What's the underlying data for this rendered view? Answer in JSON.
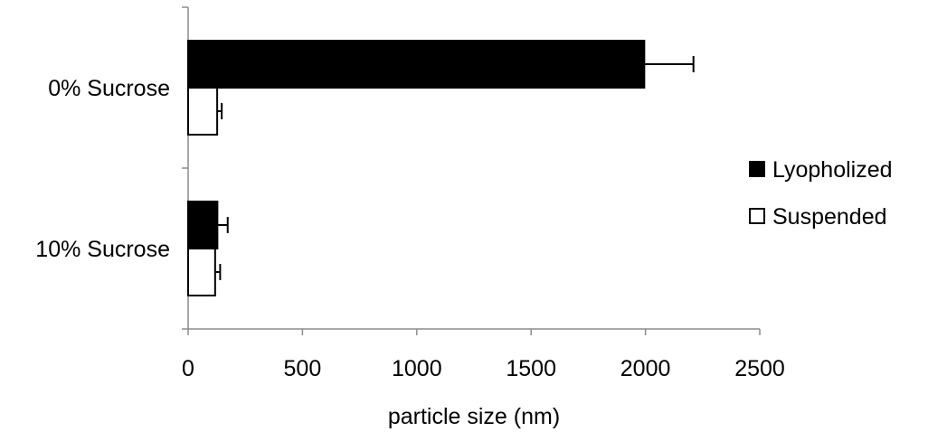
{
  "chart_data": {
    "type": "bar",
    "orientation": "horizontal",
    "categories": [
      "0% Sucrose",
      "10% Sucrose"
    ],
    "series": [
      {
        "name": "Lyopholized",
        "color": "#000000",
        "values": [
          1995,
          128
        ],
        "errors": [
          215,
          45
        ]
      },
      {
        "name": "Suspended",
        "color": "#ffffff",
        "values": [
          127,
          118
        ],
        "errors": [
          20,
          22
        ]
      }
    ],
    "xlabel": "particle size (nm)",
    "ylabel": "",
    "title": "",
    "xlim": [
      0,
      2500
    ],
    "xticks": [
      0,
      500,
      1000,
      1500,
      2000,
      2500
    ],
    "error_bars": true,
    "grid": false,
    "legend_position": "right"
  }
}
